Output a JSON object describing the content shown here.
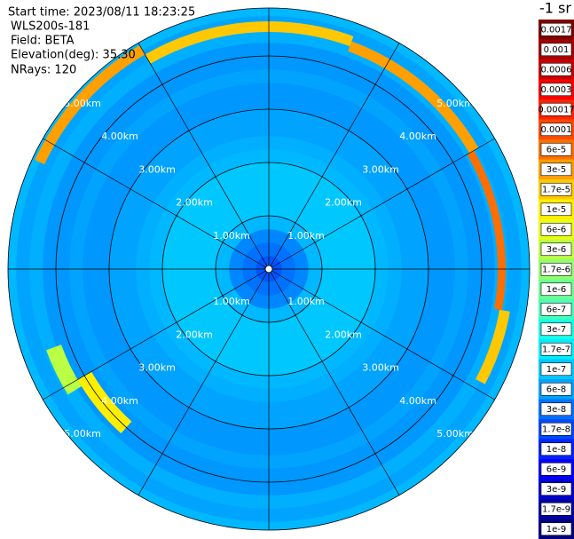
{
  "chart_data": {
    "type": "ppi",
    "header": [
      "Start time: 2023/08/11 18:23:25",
      "WLS200s-181",
      "Field: BETA",
      "Elevation(deg): 35.30",
      "NRays: 120"
    ],
    "colorbar_title": "-1 sr",
    "colorbar_ticks": [
      0.0017,
      0.001,
      0.0006,
      0.0003,
      0.00017,
      0.0001,
      {
        "value": 6e-05,
        "label": "6e-5"
      },
      {
        "value": 3e-05,
        "label": "3e-5"
      },
      {
        "value": 1.7e-05,
        "label": "1.7e-5"
      },
      {
        "value": 1e-05,
        "label": "1e-5"
      },
      {
        "value": 6e-06,
        "label": "6e-6"
      },
      {
        "value": 3e-06,
        "label": "3e-6"
      },
      {
        "value": 1.7e-06,
        "label": "1.7e-6"
      },
      {
        "value": 1e-06,
        "label": "1e-6"
      },
      {
        "value": 6e-07,
        "label": "6e-7"
      },
      {
        "value": 3e-07,
        "label": "3e-7"
      },
      {
        "value": 1.7e-07,
        "label": "1.7e-7"
      },
      {
        "value": 1e-07,
        "label": "1e-7"
      },
      {
        "value": 6e-08,
        "label": "6e-8"
      },
      {
        "value": 3e-08,
        "label": "3e-8"
      },
      {
        "value": 1.7e-08,
        "label": "1.7e-8"
      },
      {
        "value": 1e-08,
        "label": "1e-8"
      },
      {
        "value": 6e-09,
        "label": "6e-9"
      },
      {
        "value": 3e-09,
        "label": "3e-9"
      },
      {
        "value": 1.7e-09,
        "label": "1.7e-9"
      },
      {
        "value": 1e-09,
        "label": "1e-9"
      }
    ],
    "clim": [
      1e-09,
      0.0017
    ],
    "log_scale": true,
    "rlim": [
      0,
      4.9
    ],
    "rticks": [
      {
        "value": 1,
        "label": "1.00km"
      },
      {
        "value": 2,
        "label": "2.00km"
      },
      {
        "value": 3,
        "label": "3.00km"
      },
      {
        "value": 4,
        "label": "4.00km"
      },
      {
        "value": 5,
        "label": "5.00km"
      }
    ],
    "range_bins": [
      0,
      0.25,
      0.5,
      0.75,
      1,
      1.25,
      1.5,
      1.75,
      2,
      2.25,
      2.5,
      2.75,
      3,
      3.25,
      3.5,
      3.75,
      4,
      4.25,
      4.5,
      4.75,
      4.9
    ],
    "values": [
      2e-08,
      3e-08,
      4e-08,
      8e-08,
      1e-07,
      1e-07,
      1e-07,
      1e-07,
      8e-08,
      7e-08,
      6e-08,
      6e-08,
      5e-08,
      5e-08,
      6e-08,
      5e-08,
      5e-08,
      7e-08,
      6e-08,
      8e-08
    ],
    "hotspots": {
      "az_start": [
        -65,
        -30,
        20,
        60,
        100,
        222,
        238
      ],
      "az_end": [
        -30,
        20,
        60,
        100,
        118,
        240,
        250
      ],
      "r_inner": [
        4.65,
        4.45,
        4.35,
        4.3,
        4.4,
        3.85,
        4.15
      ],
      "r_outer": [
        4.85,
        4.65,
        4.55,
        4.45,
        4.6,
        4.15,
        4.45
      ],
      "values": [
        3e-05,
        1.7e-05,
        3e-05,
        6e-05,
        1.7e-05,
        1e-05,
        3e-06
      ]
    }
  }
}
